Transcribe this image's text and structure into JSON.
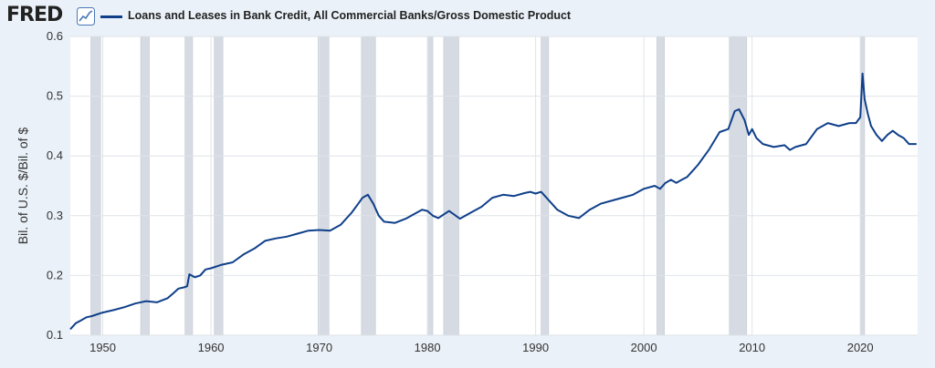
{
  "header": {
    "logo_text": "FRED",
    "logo_icon": "line-chart-icon",
    "series_label": "Loans and Leases in Bank Credit, All Commercial Banks/Gross Domestic Product"
  },
  "colors": {
    "background": "#eaf1f8",
    "plot_background": "#ffffff",
    "series": "#0f3f8a",
    "recession": "#d6dbe3",
    "gridline": "#dfe3e8"
  },
  "chart_data": {
    "type": "line",
    "title": "",
    "xlabel": "",
    "ylabel": "Bil. of U.S. $/Bil. of $",
    "xlim": [
      1947,
      2025.3
    ],
    "ylim": [
      0.1,
      0.6
    ],
    "xticks": [
      1950,
      1960,
      1970,
      1980,
      1990,
      2000,
      2010,
      2020
    ],
    "yticks": [
      0.1,
      0.2,
      0.3,
      0.4,
      0.5,
      0.6
    ],
    "ytick_labels": [
      "0.1",
      "0.2",
      "0.3",
      "0.4",
      "0.5",
      "0.6"
    ],
    "grid": true,
    "legend": "top-left",
    "recessions": [
      [
        1948.9,
        1949.8
      ],
      [
        1953.5,
        1954.3
      ],
      [
        1957.6,
        1958.3
      ],
      [
        1960.3,
        1961.1
      ],
      [
        1969.9,
        1970.9
      ],
      [
        1973.9,
        1975.2
      ],
      [
        1980.0,
        1980.5
      ],
      [
        1981.5,
        1982.9
      ],
      [
        1990.5,
        1991.2
      ],
      [
        2001.2,
        2001.9
      ],
      [
        2007.9,
        2009.5
      ],
      [
        2020.0,
        2020.4
      ]
    ],
    "series": [
      {
        "name": "Loans and Leases in Bank Credit, All Commercial Banks/Gross Domestic Product",
        "x": [
          1947,
          1947.5,
          1948,
          1948.5,
          1949,
          1949.5,
          1950,
          1951,
          1952,
          1953,
          1954,
          1955,
          1956,
          1956.5,
          1957,
          1957.5,
          1957.8,
          1958,
          1958.5,
          1959,
          1959.5,
          1960,
          1961,
          1962,
          1963,
          1964,
          1965,
          1966,
          1967,
          1968,
          1969,
          1970,
          1971,
          1972,
          1973,
          1973.6,
          1974,
          1974.5,
          1975,
          1975.5,
          1976,
          1977,
          1978,
          1979,
          1979.5,
          1980,
          1980.5,
          1981,
          1981.5,
          1982,
          1983,
          1984,
          1985,
          1986,
          1987,
          1988,
          1989,
          1989.5,
          1990,
          1990.5,
          1991,
          1992,
          1993,
          1994,
          1995,
          1996,
          1997,
          1998,
          1999,
          2000,
          2001,
          2001.5,
          2002,
          2002.5,
          2003,
          2003.5,
          2004,
          2005,
          2006,
          2007,
          2007.8,
          2008.4,
          2008.8,
          2009.3,
          2009.7,
          2010,
          2010.4,
          2011,
          2012,
          2013,
          2013.5,
          2014,
          2015,
          2016,
          2017,
          2018,
          2019,
          2019.6,
          2020,
          2020.2,
          2020.4,
          2020.7,
          2021,
          2021.5,
          2022,
          2022.5,
          2023,
          2023.5,
          2024,
          2024.5,
          2025.2
        ],
        "values": [
          0.11,
          0.12,
          0.125,
          0.13,
          0.132,
          0.135,
          0.138,
          0.142,
          0.147,
          0.153,
          0.157,
          0.155,
          0.162,
          0.17,
          0.178,
          0.18,
          0.182,
          0.202,
          0.197,
          0.2,
          0.21,
          0.212,
          0.218,
          0.222,
          0.235,
          0.245,
          0.258,
          0.262,
          0.265,
          0.27,
          0.275,
          0.276,
          0.275,
          0.285,
          0.305,
          0.32,
          0.33,
          0.335,
          0.32,
          0.3,
          0.29,
          0.288,
          0.295,
          0.305,
          0.31,
          0.308,
          0.3,
          0.296,
          0.302,
          0.308,
          0.295,
          0.305,
          0.315,
          0.33,
          0.335,
          0.333,
          0.338,
          0.34,
          0.337,
          0.34,
          0.33,
          0.31,
          0.3,
          0.296,
          0.31,
          0.32,
          0.325,
          0.33,
          0.335,
          0.345,
          0.35,
          0.345,
          0.355,
          0.36,
          0.355,
          0.36,
          0.365,
          0.385,
          0.41,
          0.44,
          0.445,
          0.475,
          0.478,
          0.46,
          0.435,
          0.445,
          0.43,
          0.42,
          0.415,
          0.418,
          0.41,
          0.415,
          0.42,
          0.445,
          0.455,
          0.45,
          0.455,
          0.455,
          0.465,
          0.538,
          0.495,
          0.47,
          0.45,
          0.435,
          0.425,
          0.435,
          0.442,
          0.435,
          0.43,
          0.42,
          0.42
        ]
      }
    ]
  }
}
